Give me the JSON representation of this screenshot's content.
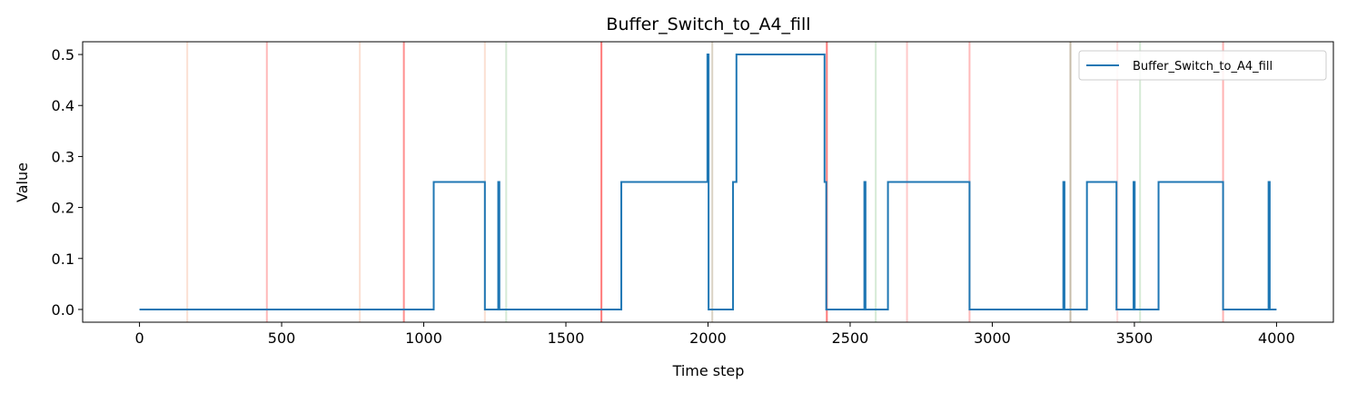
{
  "chart_data": {
    "type": "line",
    "title": "Buffer_Switch_to_A4_fill",
    "xlabel": "Time step",
    "ylabel": "Value",
    "xlim": [
      -200,
      4200
    ],
    "ylim": [
      -0.025,
      0.525
    ],
    "xticks": [
      0,
      500,
      1000,
      1500,
      2000,
      2500,
      3000,
      3500,
      4000
    ],
    "yticks": [
      0.0,
      0.1,
      0.2,
      0.3,
      0.4,
      0.5
    ],
    "xtick_labels": [
      "0",
      "500",
      "1000",
      "1500",
      "2000",
      "2500",
      "3000",
      "3500",
      "4000"
    ],
    "ytick_labels": [
      "0.0",
      "0.1",
      "0.2",
      "0.3",
      "0.4",
      "0.5"
    ],
    "grid": false,
    "legend": "top-right",
    "series": [
      {
        "name": "Buffer_Switch_to_A4_fill",
        "color": "#1f77b4",
        "step": true,
        "points": [
          [
            0,
            0
          ],
          [
            1035,
            0
          ],
          [
            1035,
            0.25
          ],
          [
            1215,
            0.25
          ],
          [
            1215,
            0
          ],
          [
            1262,
            0
          ],
          [
            1262,
            0.25
          ],
          [
            1266,
            0.25
          ],
          [
            1266,
            0
          ],
          [
            1695,
            0
          ],
          [
            1695,
            0.25
          ],
          [
            1998,
            0.25
          ],
          [
            1998,
            0.5
          ],
          [
            2002,
            0.5
          ],
          [
            2002,
            0
          ],
          [
            2088,
            0
          ],
          [
            2088,
            0.25
          ],
          [
            2100,
            0.25
          ],
          [
            2100,
            0.5
          ],
          [
            2410,
            0.5
          ],
          [
            2410,
            0.25
          ],
          [
            2416,
            0.25
          ],
          [
            2416,
            0
          ],
          [
            2550,
            0
          ],
          [
            2550,
            0.25
          ],
          [
            2554,
            0.25
          ],
          [
            2554,
            0
          ],
          [
            2633,
            0
          ],
          [
            2633,
            0.25
          ],
          [
            2920,
            0.25
          ],
          [
            2920,
            0
          ],
          [
            3250,
            0
          ],
          [
            3250,
            0.25
          ],
          [
            3254,
            0.25
          ],
          [
            3254,
            0
          ],
          [
            3333,
            0
          ],
          [
            3333,
            0.25
          ],
          [
            3437,
            0.25
          ],
          [
            3437,
            0
          ],
          [
            3497,
            0
          ],
          [
            3497,
            0.25
          ],
          [
            3501,
            0.25
          ],
          [
            3501,
            0
          ],
          [
            3585,
            0
          ],
          [
            3585,
            0.25
          ],
          [
            3812,
            0.25
          ],
          [
            3812,
            0
          ],
          [
            3972,
            0
          ],
          [
            3972,
            0.25
          ],
          [
            3976,
            0.25
          ],
          [
            3976,
            0
          ],
          [
            4000,
            0
          ]
        ]
      }
    ],
    "vlines": [
      {
        "x": 168,
        "color": "#f4a582",
        "opacity": 0.35
      },
      {
        "x": 448,
        "color": "#ff6666",
        "opacity": 0.45
      },
      {
        "x": 775,
        "color": "#f4a582",
        "opacity": 0.35
      },
      {
        "x": 930,
        "color": "#ff4444",
        "opacity": 0.6
      },
      {
        "x": 1215,
        "color": "#f4a582",
        "opacity": 0.35
      },
      {
        "x": 1290,
        "color": "#99cc99",
        "opacity": 0.4
      },
      {
        "x": 1625,
        "color": "#ff3333",
        "opacity": 0.65
      },
      {
        "x": 2015,
        "color": "#b8a88a",
        "opacity": 0.5
      },
      {
        "x": 2418,
        "color": "#ff3333",
        "opacity": 0.65
      },
      {
        "x": 2590,
        "color": "#99cc99",
        "opacity": 0.4
      },
      {
        "x": 2700,
        "color": "#ff6666",
        "opacity": 0.35
      },
      {
        "x": 2920,
        "color": "#ff6666",
        "opacity": 0.45
      },
      {
        "x": 3275,
        "color": "#a09070",
        "opacity": 0.6
      },
      {
        "x": 3440,
        "color": "#ff9999",
        "opacity": 0.35
      },
      {
        "x": 3520,
        "color": "#99cc99",
        "opacity": 0.4
      },
      {
        "x": 3812,
        "color": "#ff6666",
        "opacity": 0.5
      }
    ]
  }
}
